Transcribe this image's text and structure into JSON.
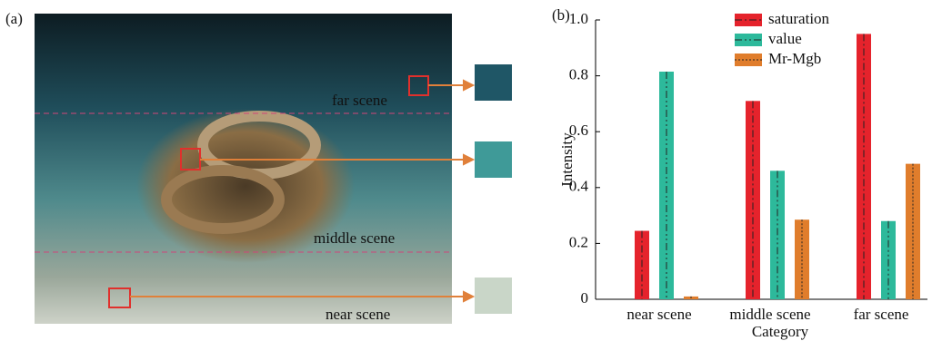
{
  "image_panel": {
    "label": "(a)",
    "annotations": [
      "far scene",
      "middle scene",
      "near scene"
    ]
  },
  "chart_data": {
    "type": "bar",
    "panel_label": "(b)",
    "xlabel": "Category",
    "ylabel": "Intensity",
    "categories": [
      "near scene",
      "middle scene",
      "far scene"
    ],
    "series": [
      {
        "name": "saturation",
        "color": "#e5232c",
        "values": [
          0.245,
          0.71,
          0.95
        ]
      },
      {
        "name": "value",
        "color": "#2db99b",
        "values": [
          0.815,
          0.46,
          0.28
        ]
      },
      {
        "name": "Mr-Mgb",
        "color": "#e07d2c",
        "values": [
          0.01,
          0.285,
          0.485
        ]
      }
    ],
    "ylim": [
      0,
      1
    ],
    "yticks": [
      0,
      0.2,
      0.4,
      0.6,
      0.8,
      {
        "value": 1,
        "label": "1.0"
      }
    ],
    "legend": "upper center"
  }
}
